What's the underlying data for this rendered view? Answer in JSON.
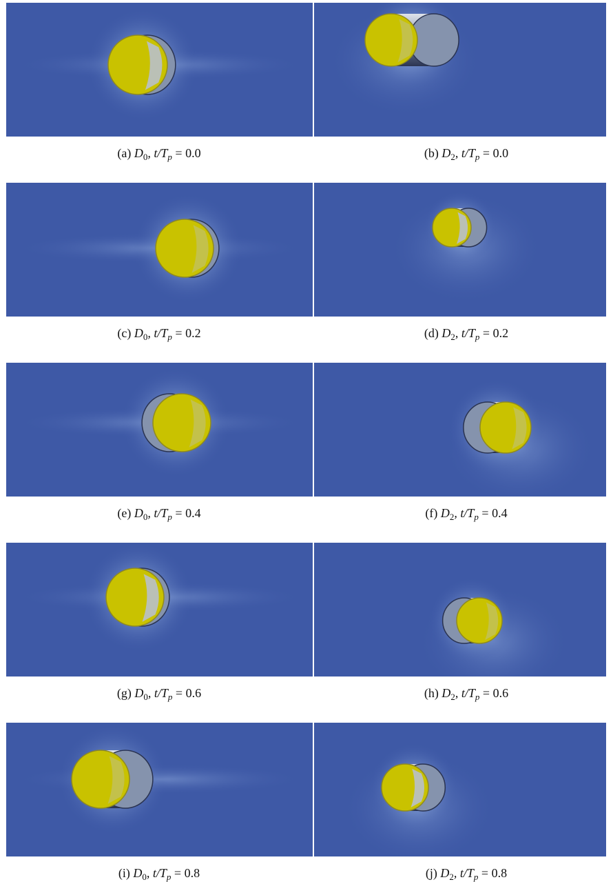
{
  "figure": {
    "panels": [
      {
        "tag": "(a)",
        "symbol": "D",
        "symbol_sub": "0",
        "time": ", t/T",
        "time_sub": "p",
        "equation": "= 0.0"
      },
      {
        "tag": "(b)",
        "symbol": "D",
        "symbol_sub": "2",
        "time": ", t/T",
        "time_sub": "p",
        "equation": "= 0.0"
      },
      {
        "tag": "(c)",
        "symbol": "D",
        "symbol_sub": "0",
        "time": ", t/T",
        "time_sub": "p",
        "equation": "= 0.2"
      },
      {
        "tag": "(d)",
        "symbol": "D",
        "symbol_sub": "2",
        "time": ", t/T",
        "time_sub": "p",
        "equation": "= 0.2"
      },
      {
        "tag": "(e)",
        "symbol": "D",
        "symbol_sub": "0",
        "time": ", t/T",
        "time_sub": "p",
        "equation": "= 0.4"
      },
      {
        "tag": "(f)",
        "symbol": "D",
        "symbol_sub": "2",
        "time": ", t/T",
        "time_sub": "p",
        "equation": "= 0.4"
      },
      {
        "tag": "(g)",
        "symbol": "D",
        "symbol_sub": "0",
        "time": ", t/T",
        "time_sub": "p",
        "equation": "= 0.6"
      },
      {
        "tag": "(h)",
        "symbol": "D",
        "symbol_sub": "2",
        "time": ", t/T",
        "time_sub": "p",
        "equation": "= 0.6"
      },
      {
        "tag": "(i)",
        "symbol": "D",
        "symbol_sub": "0",
        "time": ", t/T",
        "time_sub": "p",
        "equation": "= 0.8"
      },
      {
        "tag": "(j)",
        "symbol": "D",
        "symbol_sub": "2",
        "time": ", t/T",
        "time_sub": "p",
        "equation": "= 0.8"
      }
    ]
  }
}
